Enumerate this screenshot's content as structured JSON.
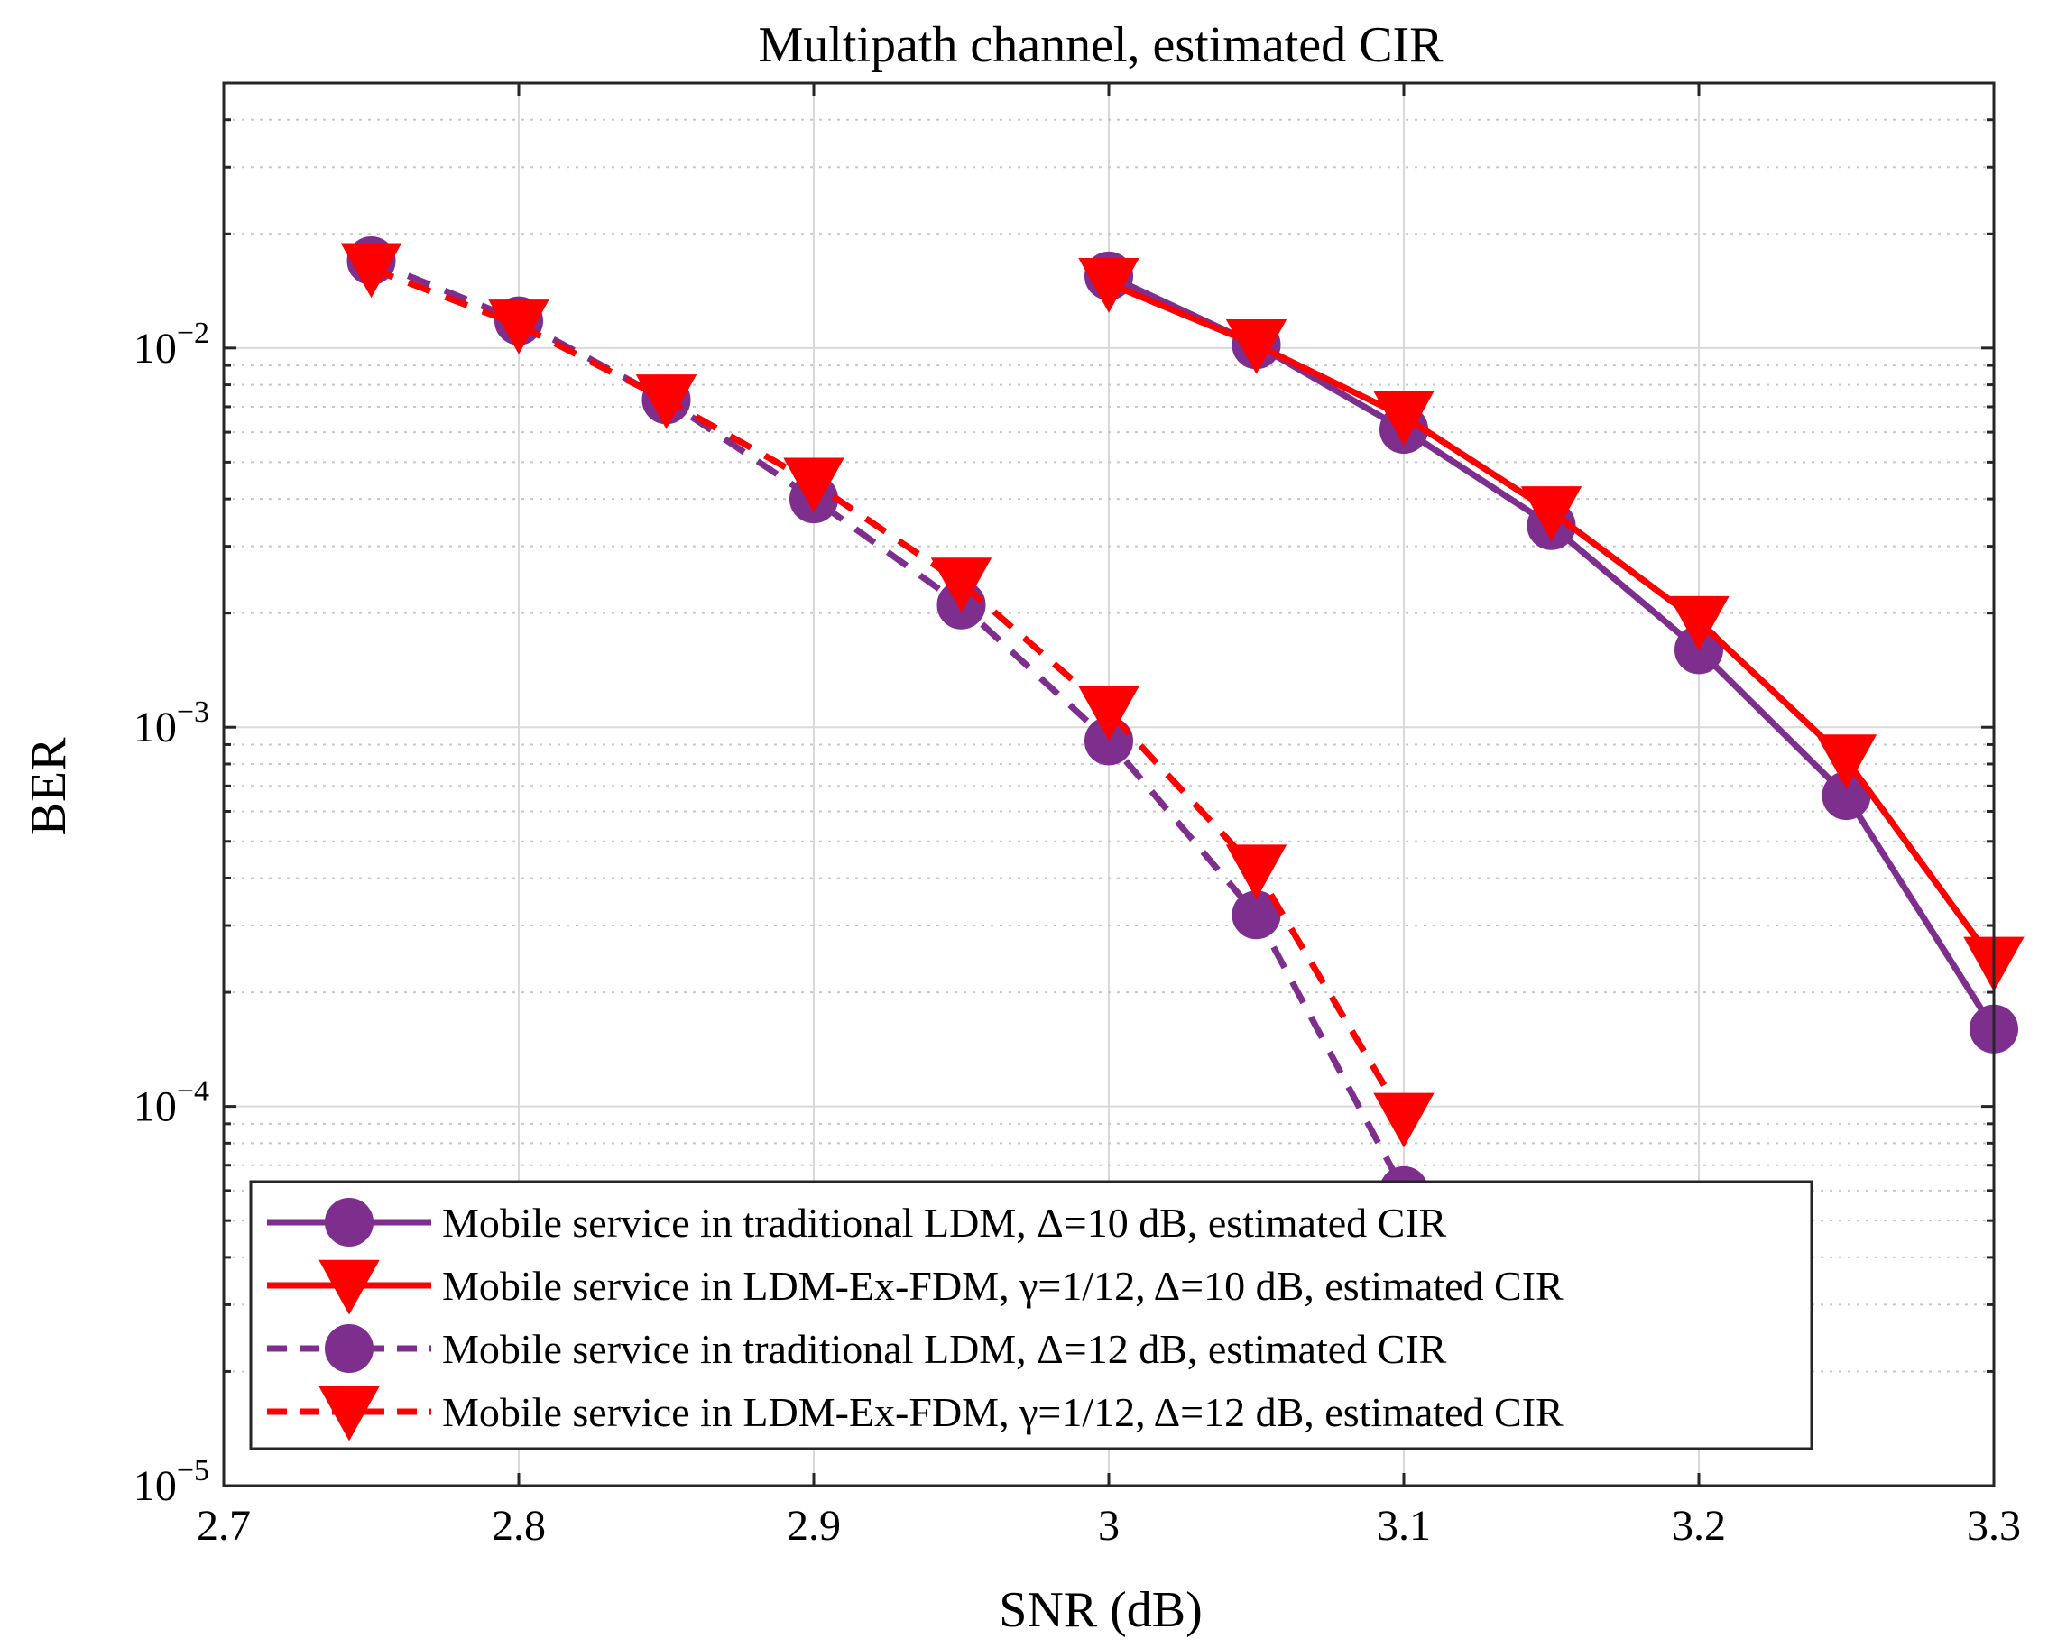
{
  "chart_data": {
    "type": "line",
    "title": "Multipath channel, estimated CIR",
    "xlabel": "SNR (dB)",
    "ylabel": "BER",
    "xlim": [
      2.7,
      3.3
    ],
    "ylim": [
      1e-05,
      0.05
    ],
    "yscale": "log",
    "grid": true,
    "legend_position": "bottom-left",
    "x_ticks": [
      "2.7",
      "2.8",
      "2.9",
      "3",
      "3.1",
      "3.2",
      "3.3"
    ],
    "y_ticks": [
      {
        "base": "10",
        "exp": "−2",
        "value": 0.01
      },
      {
        "base": "10",
        "exp": "−3",
        "value": 0.001
      },
      {
        "base": "10",
        "exp": "−4",
        "value": 0.0001
      },
      {
        "base": "10",
        "exp": "−5",
        "value": 1e-05
      }
    ],
    "series": [
      {
        "name": "Mobile service in traditional LDM, Δ=10 dB, estimated CIR",
        "color": "#7e2f8e",
        "line": "solid",
        "marker": "circle",
        "x": [
          3.0,
          3.05,
          3.1,
          3.15,
          3.2,
          3.25,
          3.3
        ],
        "y": [
          0.0155,
          0.0102,
          0.0061,
          0.0034,
          0.0016,
          0.00066,
          0.00016
        ]
      },
      {
        "name": "Mobile service in LDM-Ex-FDM, γ=1/12, Δ=10 dB, estimated CIR",
        "color": "#ff0000",
        "line": "solid",
        "marker": "triangle-down",
        "x": [
          3.0,
          3.05,
          3.1,
          3.15,
          3.2,
          3.25,
          3.3
        ],
        "y": [
          0.0148,
          0.0102,
          0.0066,
          0.0037,
          0.0019,
          0.00082,
          0.00024
        ]
      },
      {
        "name": "Mobile service in traditional LDM, Δ=12 dB, estimated CIR",
        "color": "#7e2f8e",
        "line": "dashed",
        "marker": "circle",
        "x": [
          2.75,
          2.8,
          2.85,
          2.9,
          2.95,
          3.0,
          3.05,
          3.1
        ],
        "y": [
          0.017,
          0.0118,
          0.0073,
          0.004,
          0.0021,
          0.00092,
          0.00032,
          6e-05
        ]
      },
      {
        "name": "Mobile service in LDM-Ex-FDM, γ=1/12, Δ=12 dB, estimated CIR",
        "color": "#ff0000",
        "line": "dashed",
        "marker": "triangle-down",
        "x": [
          2.75,
          2.8,
          2.85,
          2.9,
          2.95,
          3.0,
          3.05,
          3.1
        ],
        "y": [
          0.0162,
          0.0115,
          0.0073,
          0.0044,
          0.0024,
          0.0011,
          0.00042,
          9.3e-05
        ]
      }
    ]
  }
}
